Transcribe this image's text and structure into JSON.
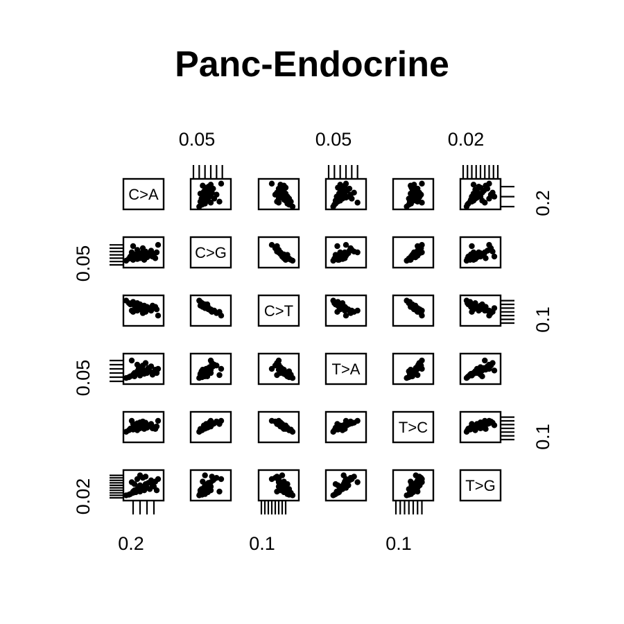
{
  "chart_data": {
    "type": "scatter",
    "title": "Panc-Endocrine",
    "variables": [
      "C>A",
      "C>G",
      "C>T",
      "T>A",
      "T>C",
      "T>G"
    ],
    "tick_labels": {
      "top": [
        "0.05",
        "0.05",
        "0.02"
      ],
      "right": [
        "0.2",
        "0.1",
        "0.1"
      ],
      "left": [
        "0.05",
        "0.05",
        "0.02"
      ],
      "bottom": [
        "0.2",
        "0.1",
        "0.1"
      ]
    },
    "grid": false,
    "legend": "none",
    "samples": [
      [
        0.0,
        0.01,
        0.18,
        0.008,
        0.025,
        0.004
      ],
      [
        0.23,
        0.048,
        0.06,
        0.03,
        0.06,
        0.03
      ],
      [
        0.02,
        0.015,
        0.16,
        0.01,
        0.03,
        0.005
      ],
      [
        0.03,
        0.02,
        0.15,
        0.012,
        0.035,
        0.006
      ],
      [
        0.04,
        0.03,
        0.1,
        0.05,
        0.06,
        0.025
      ],
      [
        0.05,
        0.012,
        0.17,
        0.016,
        0.032,
        0.008
      ],
      [
        0.05,
        0.045,
        0.09,
        0.015,
        0.05,
        0.01
      ],
      [
        0.06,
        0.018,
        0.14,
        0.02,
        0.045,
        0.012
      ],
      [
        0.07,
        0.025,
        0.13,
        0.018,
        0.04,
        0.009
      ],
      [
        0.08,
        0.014,
        0.16,
        0.024,
        0.03,
        0.014
      ],
      [
        0.09,
        0.022,
        0.12,
        0.03,
        0.05,
        0.016
      ],
      [
        0.1,
        0.016,
        0.15,
        0.014,
        0.036,
        0.01
      ],
      [
        0.1,
        0.028,
        0.11,
        0.034,
        0.055,
        0.02
      ],
      [
        0.11,
        0.02,
        0.13,
        0.022,
        0.042,
        0.015
      ],
      [
        0.12,
        0.03,
        0.1,
        0.028,
        0.048,
        0.018
      ],
      [
        0.13,
        0.012,
        0.14,
        0.018,
        0.034,
        0.012
      ],
      [
        0.14,
        0.024,
        0.12,
        0.026,
        0.04,
        0.022
      ],
      [
        0.15,
        0.018,
        0.13,
        0.02,
        0.038,
        0.016
      ],
      [
        0.16,
        0.026,
        0.11,
        0.032,
        0.046,
        0.024
      ],
      [
        0.17,
        0.022,
        0.12,
        0.024,
        0.044,
        0.014
      ],
      [
        0.18,
        0.034,
        0.1,
        0.036,
        0.05,
        0.028
      ],
      [
        0.19,
        0.02,
        0.14,
        0.016,
        0.036,
        0.02
      ],
      [
        0.2,
        0.026,
        0.12,
        0.022,
        0.04,
        0.018
      ],
      [
        0.21,
        0.016,
        0.13,
        0.028,
        0.034,
        0.026
      ],
      [
        0.22,
        0.03,
        0.11,
        0.02,
        0.042,
        0.012
      ],
      [
        0.08,
        0.036,
        0.1,
        0.04,
        0.052,
        0.03
      ],
      [
        0.12,
        0.04,
        0.08,
        0.038,
        0.058,
        0.032
      ],
      [
        0.06,
        0.024,
        0.15,
        0.012,
        0.038,
        0.022
      ],
      [
        0.14,
        0.032,
        0.09,
        0.044,
        0.054,
        0.034
      ],
      [
        0.1,
        0.02,
        0.12,
        0.026,
        0.046,
        0.036
      ]
    ],
    "ranges": [
      [
        0.0,
        0.25
      ],
      [
        0.0,
        0.06
      ],
      [
        0.0,
        0.2
      ],
      [
        0.0,
        0.06
      ],
      [
        0.0,
        0.08
      ],
      [
        0.0,
        0.04
      ]
    ],
    "top_ticks": [
      {
        "column": 1,
        "values": [
          0.0,
          0.01,
          0.02,
          0.03,
          0.04,
          0.05
        ]
      },
      {
        "column": 3,
        "values": [
          0.0,
          0.01,
          0.02,
          0.03,
          0.04,
          0.05
        ]
      },
      {
        "column": 5,
        "values": [
          0.0,
          0.005,
          0.01,
          0.015,
          0.02,
          0.025,
          0.03,
          0.035,
          0.04
        ]
      }
    ],
    "bottom_ticks": [
      {
        "column": 0,
        "values": [
          0.05,
          0.1,
          0.15,
          0.2
        ]
      },
      {
        "column": 2,
        "values": [
          0.0,
          0.02,
          0.04,
          0.06,
          0.08,
          0.1,
          0.12,
          0.14
        ]
      },
      {
        "column": 4,
        "values": [
          0.0,
          0.01,
          0.02,
          0.03,
          0.04,
          0.05,
          0.06
        ]
      }
    ],
    "left_ticks": [
      {
        "row": 1,
        "values": [
          0.0,
          0.008,
          0.016,
          0.024,
          0.032,
          0.04,
          0.048
        ]
      },
      {
        "row": 3,
        "values": [
          0.0,
          0.01,
          0.02,
          0.03,
          0.04,
          0.05
        ]
      },
      {
        "row": 5,
        "values": [
          0.0,
          0.004,
          0.008,
          0.012,
          0.016,
          0.02,
          0.024,
          0.028,
          0.032,
          0.036
        ]
      }
    ],
    "right_ticks": [
      {
        "row": 0,
        "values": [
          0.0,
          0.1,
          0.2
        ]
      },
      {
        "row": 2,
        "values": [
          0.0,
          0.03,
          0.06,
          0.09,
          0.12,
          0.15,
          0.18
        ]
      },
      {
        "row": 4,
        "values": [
          0.0,
          0.012,
          0.024,
          0.036,
          0.048,
          0.06,
          0.072
        ]
      }
    ]
  }
}
